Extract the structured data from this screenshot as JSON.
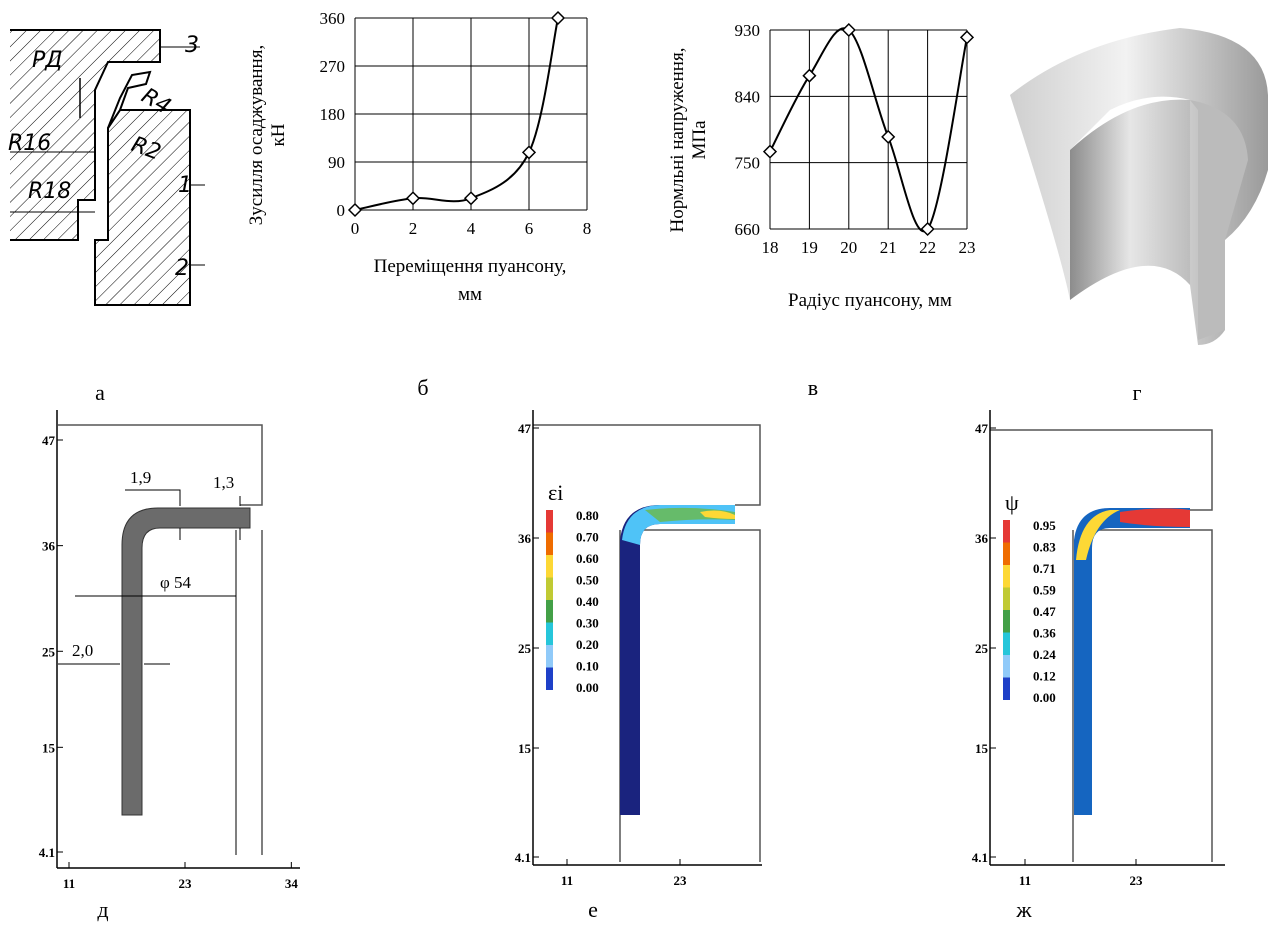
{
  "chart_data": [
    {
      "type": "line",
      "caption": "б",
      "ylabel": [
        "Зусилля осаджування,",
        "кН"
      ],
      "xlabel": [
        "Переміщення пуансону,",
        "мм"
      ],
      "x": [
        0,
        2,
        4,
        6,
        7
      ],
      "values": [
        0,
        22,
        22,
        108,
        360
      ],
      "xlim": [
        0,
        8
      ],
      "xticks": [
        0,
        2,
        4,
        6,
        8
      ],
      "ylim": [
        0,
        360
      ],
      "yticks": [
        0,
        90,
        180,
        270,
        360
      ],
      "grid": true,
      "color": "#000000",
      "marker": "diamond"
    },
    {
      "type": "line",
      "caption": "в",
      "ylabel": [
        "Нормльні напруження,",
        "МПа"
      ],
      "xlabel": [
        "Радіус пуансону, мм"
      ],
      "x": [
        18,
        19,
        20,
        21,
        22,
        23
      ],
      "values": [
        765,
        868,
        930,
        785,
        660,
        920
      ],
      "xlim": [
        18,
        23
      ],
      "xticks": [
        18,
        19,
        20,
        21,
        22,
        23
      ],
      "ylim": [
        660,
        930
      ],
      "yticks": [
        660,
        750,
        840,
        930
      ],
      "grid": true,
      "color": "#000000",
      "marker": "diamond"
    }
  ],
  "drawing": {
    "caption": "а",
    "labels": [
      "PД",
      "3",
      "R4",
      "R2",
      "R16",
      "R18",
      "1",
      "2"
    ]
  },
  "render": {
    "caption": "г"
  },
  "fe_panels": [
    {
      "caption": "д",
      "xticks": [
        11,
        23,
        34
      ],
      "yticks": [
        47,
        36,
        25,
        15,
        4.1
      ],
      "dimensions": [
        "1,9",
        "1,3",
        "φ 54",
        "2,0"
      ]
    },
    {
      "caption": "е",
      "xticks": [
        11,
        23
      ],
      "yticks": [
        47,
        36,
        25,
        15,
        4.1
      ],
      "legend_title": "εi",
      "legend_labels": [
        "0.80",
        "0.70",
        "0.60",
        "0.50",
        "0.40",
        "0.30",
        "0.20",
        "0.10",
        "0.00"
      ]
    },
    {
      "caption": "ж",
      "xticks": [
        11,
        23
      ],
      "yticks": [
        47,
        36,
        25,
        15,
        4.1
      ],
      "legend_title": "ψ",
      "legend_labels": [
        "0.95",
        "0.83",
        "0.71",
        "0.59",
        "0.47",
        "0.36",
        "0.24",
        "0.12",
        "0.00"
      ]
    }
  ]
}
